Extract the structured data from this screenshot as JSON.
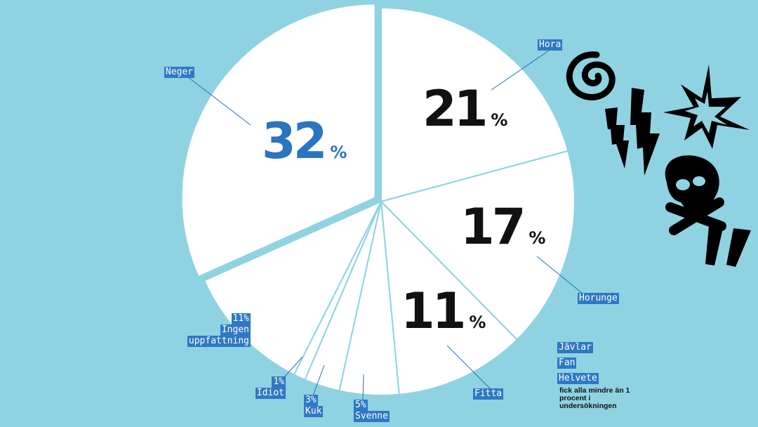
{
  "chart_data": {
    "type": "pie",
    "start": "top",
    "direction": "clockwise",
    "exploded": [
      "Neger"
    ],
    "slices": [
      {
        "label": "Hora",
        "value": 21
      },
      {
        "label": "Horunge",
        "value": 17
      },
      {
        "label": "Fitta",
        "value": 11
      },
      {
        "label": "Svenne",
        "value": 5
      },
      {
        "label": "Kuk",
        "value": 3
      },
      {
        "label": "Idiot",
        "value": 1
      },
      {
        "label": "Ingen uppfattning",
        "value": 11
      },
      {
        "label": "Neger",
        "value": 32
      }
    ],
    "big_labels": {
      "hora": "21",
      "horunge": "17",
      "fitta": "11",
      "neger": "32",
      "percent": "%"
    },
    "small_labels": {
      "hora": "Hora",
      "neger": "Neger",
      "horunge": "Horunge",
      "fitta": "Fitta",
      "svenne_pct": "5%",
      "svenne": "Svenne",
      "kuk_pct": "3%",
      "kuk": "Kuk",
      "idiot_pct": "1%",
      "idiot": "Idiot",
      "ingen_pct": "11%",
      "ingen1": "Ingen",
      "ingen2": "uppfattning"
    },
    "minor": [
      "Jävlar",
      "Fan",
      "Helvete"
    ],
    "note": "fick alla mindre än 1 procent i undersökningen",
    "colors": {
      "background": "#8fd3e2",
      "slice": "#ffffff",
      "label_box": "#2f78c4",
      "highlight": "#2a74c0"
    }
  },
  "icons": [
    "spiral-icon",
    "lightning-icon",
    "explosion-icon",
    "skull-crossbones-icon",
    "quote-marks-icon"
  ]
}
